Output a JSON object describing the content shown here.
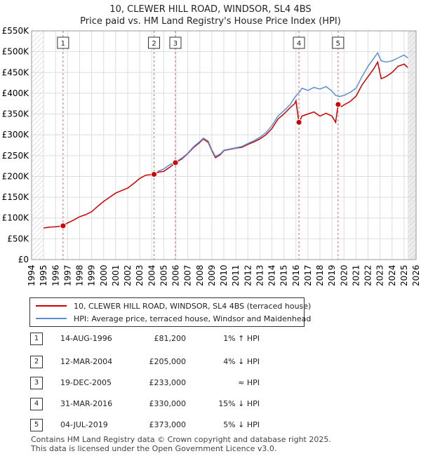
{
  "chart_data": {
    "type": "line",
    "title": "10, CLEWER HILL ROAD, WINDSOR, SL4 4BS",
    "subtitle": "Price paid vs. HM Land Registry's House Price Index (HPI)",
    "xlim": [
      1994,
      2026
    ],
    "ylim": [
      0,
      550000
    ],
    "x_ticks": [
      1994,
      1995,
      1996,
      1997,
      1998,
      1999,
      2000,
      2001,
      2002,
      2003,
      2004,
      2005,
      2006,
      2007,
      2008,
      2009,
      2010,
      2011,
      2012,
      2013,
      2014,
      2015,
      2016,
      2017,
      2018,
      2019,
      2020,
      2021,
      2022,
      2023,
      2024,
      2025,
      2026
    ],
    "y_ticks": [
      0,
      50000,
      100000,
      150000,
      200000,
      250000,
      300000,
      350000,
      400000,
      450000,
      500000,
      550000
    ],
    "y_tick_labels": [
      "£0",
      "£50K",
      "£100K",
      "£150K",
      "£200K",
      "£250K",
      "£300K",
      "£350K",
      "£400K",
      "£450K",
      "£500K",
      "£550K"
    ],
    "series": [
      {
        "name": "10, CLEWER HILL ROAD, WINDSOR, SL4 4BS (terraced house)",
        "color": "#cc0000",
        "points": [
          [
            1995,
            76000
          ],
          [
            1995.5,
            78000
          ],
          [
            1996,
            79000
          ],
          [
            1996.62,
            81200
          ],
          [
            1997,
            88000
          ],
          [
            1997.5,
            95000
          ],
          [
            1998,
            103000
          ],
          [
            1998.5,
            108000
          ],
          [
            1999,
            115000
          ],
          [
            1999.5,
            128000
          ],
          [
            2000,
            140000
          ],
          [
            2000.5,
            150000
          ],
          [
            2001,
            160000
          ],
          [
            2001.5,
            166000
          ],
          [
            2002,
            172000
          ],
          [
            2002.5,
            183000
          ],
          [
            2003,
            195000
          ],
          [
            2003.5,
            203000
          ],
          [
            2004.19,
            205000
          ],
          [
            2004.5,
            210000
          ],
          [
            2005,
            212000
          ],
          [
            2005.5,
            222000
          ],
          [
            2005.97,
            233000
          ],
          [
            2006.5,
            242000
          ],
          [
            2007,
            255000
          ],
          [
            2007.5,
            270000
          ],
          [
            2008,
            282000
          ],
          [
            2008.3,
            290000
          ],
          [
            2008.7,
            282000
          ],
          [
            2009,
            262000
          ],
          [
            2009.3,
            245000
          ],
          [
            2009.7,
            252000
          ],
          [
            2010,
            262000
          ],
          [
            2010.5,
            265000
          ],
          [
            2011,
            268000
          ],
          [
            2011.5,
            270000
          ],
          [
            2012,
            277000
          ],
          [
            2012.5,
            283000
          ],
          [
            2013,
            290000
          ],
          [
            2013.5,
            300000
          ],
          [
            2014,
            315000
          ],
          [
            2014.5,
            338000
          ],
          [
            2015,
            350000
          ],
          [
            2015.5,
            365000
          ],
          [
            2015.9,
            375000
          ],
          [
            2016.0,
            382000
          ],
          [
            2016.25,
            330000
          ],
          [
            2016.5,
            345000
          ],
          [
            2017,
            350000
          ],
          [
            2017.5,
            355000
          ],
          [
            2018,
            345000
          ],
          [
            2018.5,
            352000
          ],
          [
            2019,
            345000
          ],
          [
            2019.3,
            330000
          ],
          [
            2019.51,
            373000
          ],
          [
            2019.8,
            368000
          ],
          [
            2020,
            372000
          ],
          [
            2020.5,
            380000
          ],
          [
            2021,
            393000
          ],
          [
            2021.5,
            420000
          ],
          [
            2022,
            440000
          ],
          [
            2022.5,
            460000
          ],
          [
            2022.8,
            475000
          ],
          [
            2023.1,
            435000
          ],
          [
            2023.5,
            440000
          ],
          [
            2024,
            450000
          ],
          [
            2024.5,
            465000
          ],
          [
            2025,
            470000
          ],
          [
            2025.3,
            462000
          ]
        ]
      },
      {
        "name": "HPI: Average price, terraced house, Windsor and Maidenhead",
        "color": "#5b8fd6",
        "points": [
          [
            2004.5,
            212000
          ],
          [
            2005,
            218000
          ],
          [
            2005.5,
            228000
          ],
          [
            2006,
            235000
          ],
          [
            2006.5,
            244000
          ],
          [
            2007,
            256000
          ],
          [
            2007.5,
            272000
          ],
          [
            2008,
            284000
          ],
          [
            2008.3,
            292000
          ],
          [
            2008.7,
            285000
          ],
          [
            2009,
            264000
          ],
          [
            2009.3,
            248000
          ],
          [
            2009.7,
            254000
          ],
          [
            2010,
            263000
          ],
          [
            2010.5,
            266000
          ],
          [
            2011,
            269000
          ],
          [
            2011.5,
            272000
          ],
          [
            2012,
            279000
          ],
          [
            2012.5,
            286000
          ],
          [
            2013,
            294000
          ],
          [
            2013.5,
            305000
          ],
          [
            2014,
            322000
          ],
          [
            2014.5,
            345000
          ],
          [
            2015,
            358000
          ],
          [
            2015.5,
            372000
          ],
          [
            2015.9,
            390000
          ],
          [
            2016.3,
            403000
          ],
          [
            2016.5,
            412000
          ],
          [
            2017,
            407000
          ],
          [
            2017.5,
            414000
          ],
          [
            2018,
            410000
          ],
          [
            2018.5,
            416000
          ],
          [
            2019,
            405000
          ],
          [
            2019.3,
            395000
          ],
          [
            2019.6,
            392000
          ],
          [
            2020,
            395000
          ],
          [
            2020.5,
            402000
          ],
          [
            2021,
            412000
          ],
          [
            2021.5,
            440000
          ],
          [
            2022,
            465000
          ],
          [
            2022.5,
            485000
          ],
          [
            2022.8,
            497000
          ],
          [
            2023.1,
            478000
          ],
          [
            2023.5,
            475000
          ],
          [
            2024,
            478000
          ],
          [
            2024.5,
            485000
          ],
          [
            2025,
            492000
          ],
          [
            2025.3,
            485000
          ]
        ]
      }
    ],
    "sales": [
      {
        "id": "1",
        "x": 1996.62,
        "y": 81200
      },
      {
        "id": "2",
        "x": 2004.19,
        "y": 205000
      },
      {
        "id": "3",
        "x": 2005.97,
        "y": 233000
      },
      {
        "id": "4",
        "x": 2016.25,
        "y": 330000
      },
      {
        "id": "5",
        "x": 2019.51,
        "y": 373000
      }
    ],
    "projection_start": 2025.3
  },
  "legend": {
    "property_label": "10, CLEWER HILL ROAD, WINDSOR, SL4 4BS (terraced house)",
    "hpi_label": "HPI: Average price, terraced house, Windsor and Maidenhead"
  },
  "sales_table": [
    {
      "num": "1",
      "date": "14-AUG-1996",
      "price": "£81,200",
      "hpi": "1% ↑ HPI"
    },
    {
      "num": "2",
      "date": "12-MAR-2004",
      "price": "£205,000",
      "hpi": "4% ↓ HPI"
    },
    {
      "num": "3",
      "date": "19-DEC-2005",
      "price": "£233,000",
      "hpi": "≈ HPI"
    },
    {
      "num": "4",
      "date": "31-MAR-2016",
      "price": "£330,000",
      "hpi": "15% ↓ HPI"
    },
    {
      "num": "5",
      "date": "04-JUL-2019",
      "price": "£373,000",
      "hpi": "5% ↓ HPI"
    }
  ],
  "footer": {
    "line1": "Contains HM Land Registry data © Crown copyright and database right 2025.",
    "line2": "This data is licensed under the Open Government Licence v3.0."
  }
}
